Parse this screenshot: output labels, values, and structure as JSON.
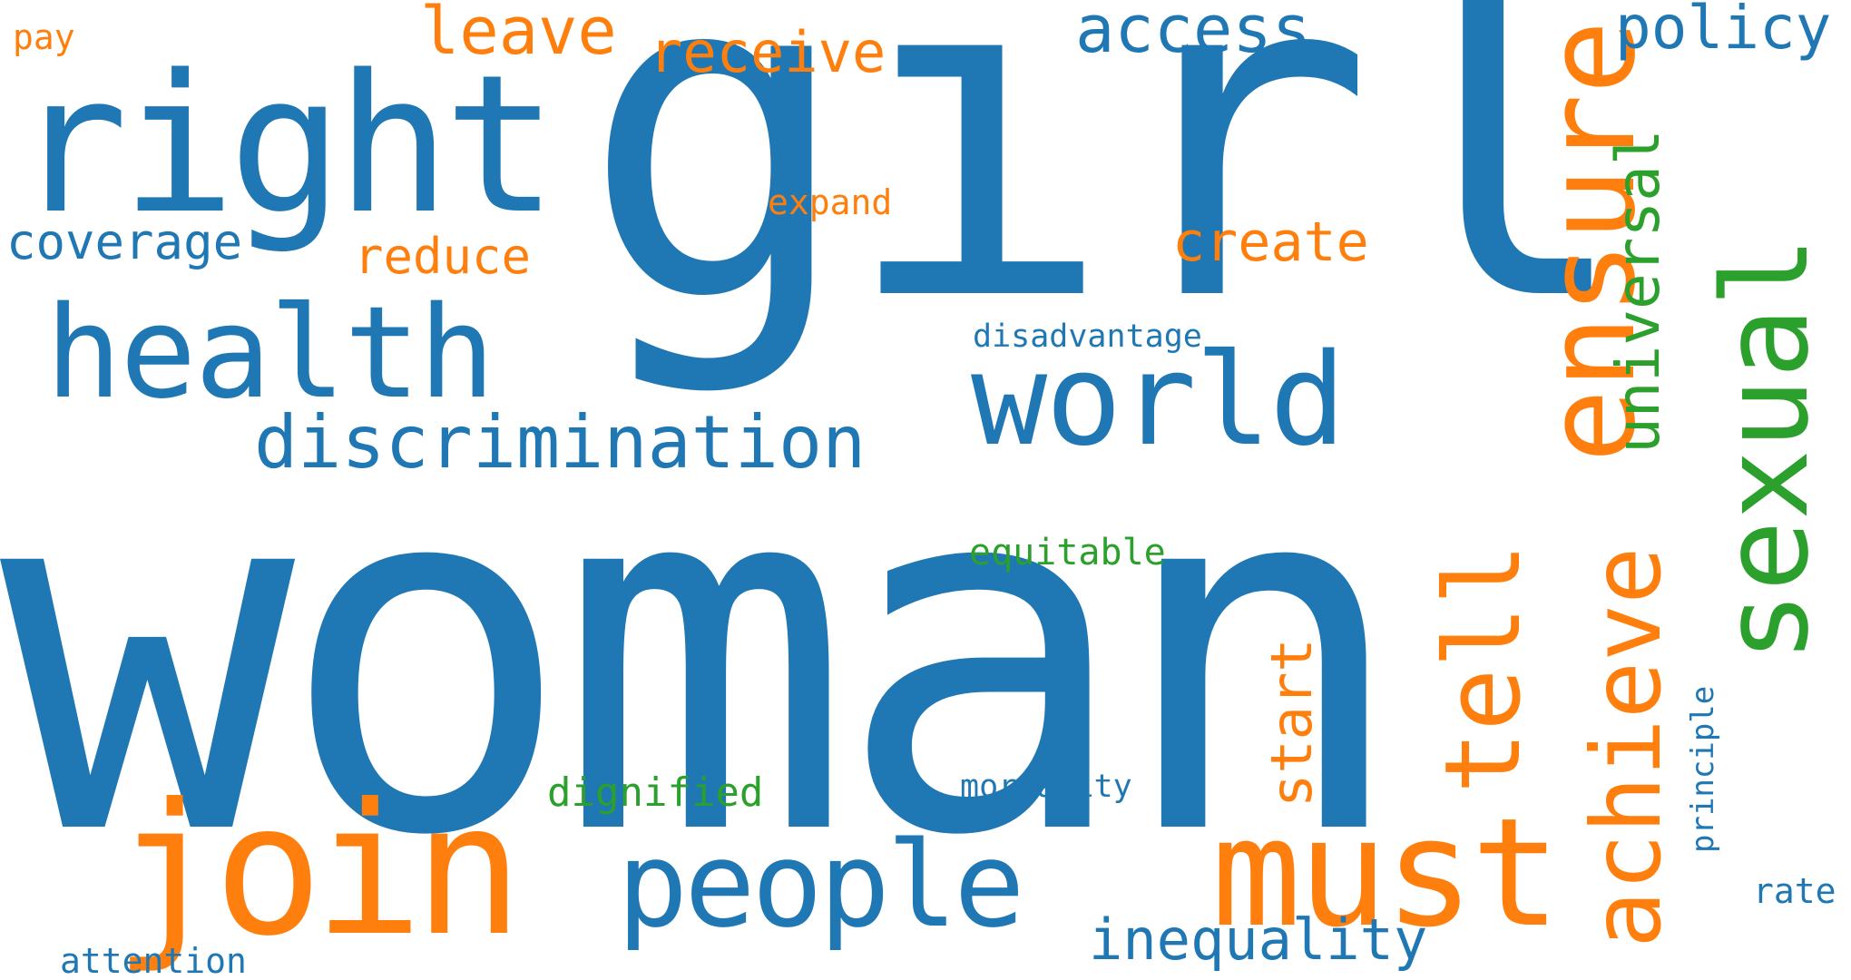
{
  "words": {
    "woman": "woman",
    "girl": "girl",
    "right": "right",
    "health": "health",
    "world": "world",
    "discrimination": "discrimination",
    "join": "join",
    "people": "people",
    "must": "must",
    "ensure": "ensure",
    "sexual": "sexual",
    "achieve": "achieve",
    "tell": "tell",
    "start": "start",
    "universal": "universal",
    "access": "access",
    "policy": "policy",
    "leave": "leave",
    "receive": "receive",
    "pay": "pay",
    "coverage": "coverage",
    "reduce": "reduce",
    "expand": "expand",
    "create": "create",
    "disadvantage": "disadvantage",
    "equitable": "equitable",
    "dignified": "dignified",
    "mortality": "mortality",
    "principle": "principle",
    "inequality": "inequality",
    "rate": "rate",
    "attention": "attention"
  },
  "colors": {
    "blue": "#1f77b4",
    "orange": "#ff7f0e",
    "green": "#2ca02c"
  }
}
